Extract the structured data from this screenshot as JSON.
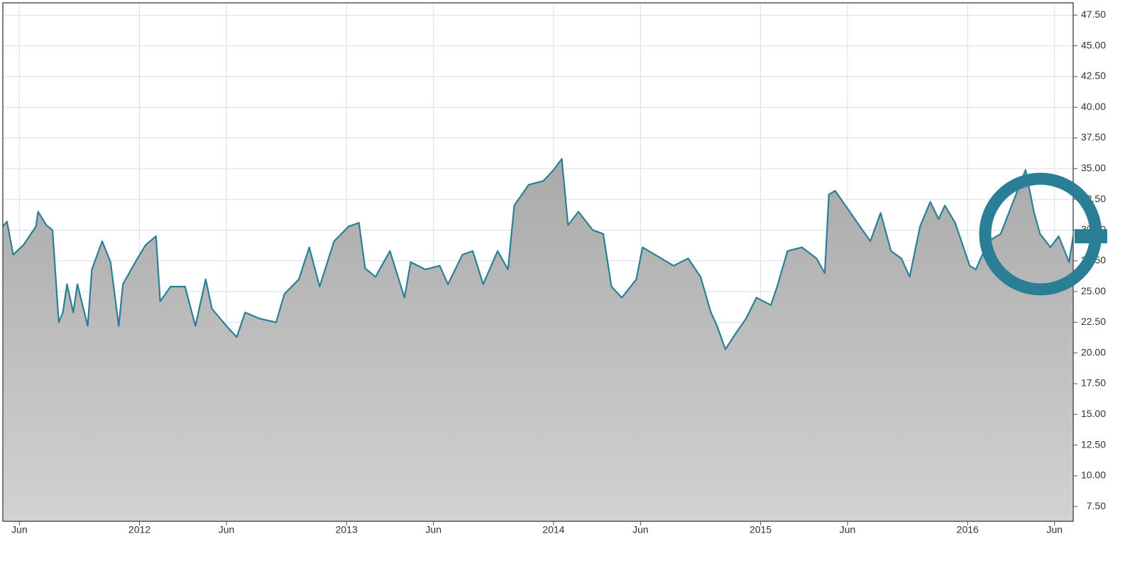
{
  "chart_data": {
    "type": "area",
    "color": "#2a7f96",
    "grid": true,
    "xlim": [
      2011.34,
      2016.51
    ],
    "ylim": [
      6.3,
      48.5
    ],
    "xticks": [
      {
        "value": 2011.42,
        "label": "Jun"
      },
      2012,
      {
        "value": 2012.42,
        "label": "Jun"
      },
      2013,
      {
        "value": 2013.42,
        "label": "Jun"
      },
      2014,
      {
        "value": 2014.42,
        "label": "Jun"
      },
      2015,
      {
        "value": 2015.42,
        "label": "Jun"
      },
      2016,
      {
        "value": 2016.42,
        "label": "Jun"
      }
    ],
    "yticks": [
      {
        "value": 7.5,
        "label": "7.50"
      },
      {
        "value": 10,
        "label": "10.00"
      },
      {
        "value": 12.5,
        "label": "12.50"
      },
      {
        "value": 15,
        "label": "15.00"
      },
      {
        "value": 17.5,
        "label": "17.50"
      },
      {
        "value": 20,
        "label": "20.00"
      },
      {
        "value": 22.5,
        "label": "22.50"
      },
      {
        "value": 25,
        "label": "25.00"
      },
      {
        "value": 27.5,
        "label": "27.50"
      },
      {
        "value": 30,
        "label": "30.00"
      },
      {
        "value": 32.5,
        "label": "32.50"
      },
      {
        "value": 35,
        "label": "35.00"
      },
      {
        "value": 37.5,
        "label": "37.50"
      },
      {
        "value": 40,
        "label": "40.00"
      },
      {
        "value": 42.5,
        "label": "42.50"
      },
      {
        "value": 45,
        "label": "45.00"
      },
      {
        "value": 47.5,
        "label": "47.50"
      }
    ],
    "x": [
      2011.34,
      2011.36,
      2011.39,
      2011.44,
      2011.5,
      2011.51,
      2011.55,
      2011.58,
      2011.61,
      2011.63,
      2011.65,
      2011.68,
      2011.7,
      2011.75,
      2011.77,
      2011.82,
      2011.86,
      2011.9,
      2011.92,
      2011.98,
      2012.03,
      2012.08,
      2012.1,
      2012.15,
      2012.22,
      2012.27,
      2012.32,
      2012.35,
      2012.42,
      2012.47,
      2012.51,
      2012.58,
      2012.66,
      2012.7,
      2012.77,
      2012.82,
      2012.87,
      2012.94,
      2013.01,
      2013.06,
      2013.09,
      2013.14,
      2013.21,
      2013.28,
      2013.31,
      2013.38,
      2013.45,
      2013.49,
      2013.56,
      2013.61,
      2013.66,
      2013.73,
      2013.78,
      2013.81,
      2013.88,
      2013.95,
      2014.0,
      2014.04,
      2014.07,
      2014.12,
      2014.19,
      2014.24,
      2014.28,
      2014.33,
      2014.4,
      2014.43,
      2014.52,
      2014.58,
      2014.65,
      2014.71,
      2014.76,
      2014.79,
      2014.83,
      2014.88,
      2014.93,
      2014.98,
      2015.05,
      2015.08,
      2015.13,
      2015.2,
      2015.27,
      2015.31,
      2015.33,
      2015.36,
      2015.41,
      2015.48,
      2015.53,
      2015.58,
      2015.63,
      2015.68,
      2015.72,
      2015.77,
      2015.82,
      2015.86,
      2015.89,
      2015.94,
      2016.01,
      2016.04,
      2016.1,
      2016.16,
      2016.22,
      2016.28,
      2016.32,
      2016.35,
      2016.4,
      2016.44,
      2016.49,
      2016.51
    ],
    "values": [
      30.3,
      30.7,
      28,
      28.8,
      30.3,
      31.5,
      30.4,
      30,
      22.5,
      23.3,
      25.6,
      23.3,
      25.6,
      22.2,
      26.8,
      29.1,
      27.4,
      22.2,
      25.6,
      27.4,
      28.8,
      29.5,
      24.2,
      25.4,
      25.4,
      22.2,
      26,
      23.6,
      22.2,
      21.3,
      23.3,
      22.8,
      22.5,
      24.8,
      26,
      28.6,
      25.4,
      29.1,
      30.3,
      30.6,
      26.9,
      26.2,
      28.3,
      24.5,
      27.4,
      26.8,
      27.1,
      25.6,
      28,
      28.3,
      25.6,
      28.3,
      26.8,
      32,
      33.7,
      34,
      34.9,
      35.8,
      30.4,
      31.5,
      30,
      29.7,
      25.4,
      24.5,
      26,
      28.6,
      27.7,
      27.1,
      27.7,
      26.2,
      23.3,
      22.2,
      20.3,
      21.6,
      22.8,
      24.5,
      23.9,
      25.4,
      28.3,
      28.6,
      27.7,
      26.5,
      32.9,
      33.2,
      32,
      30.3,
      29.1,
      31.4,
      28.3,
      27.7,
      26.2,
      30.3,
      32.3,
      30.9,
      32,
      30.6,
      27.1,
      26.8,
      29.1,
      29.7,
      32.3,
      34.9,
      31.5,
      29.7,
      28.6,
      29.5,
      27.4,
      29.5
    ]
  }
}
